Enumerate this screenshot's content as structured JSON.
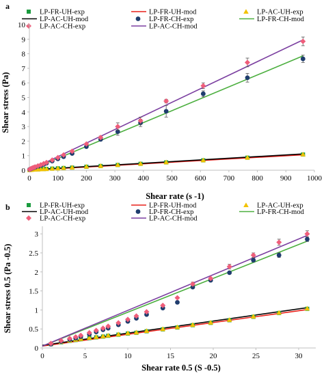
{
  "colors": {
    "FR_UH_exp": "#1a9b3e",
    "FR_UH_mod": "#e8201a",
    "AC_UH_exp": "#f2c200",
    "AC_UH_mod": "#000000",
    "FR_CH_exp": "#1f3d6e",
    "FR_CH_mod": "#4caf3f",
    "AC_CH_exp": "#ef5d7a",
    "AC_CH_mod": "#7b3fa0",
    "axis": "#bfbfbf"
  },
  "chart_data": [
    {
      "panel_label": "a",
      "type": "scatter",
      "xlabel": "Shear rate (s -1)",
      "ylabel": "Shear stress (Pa)",
      "xlim": [
        0,
        1000
      ],
      "ylim": [
        0,
        10
      ],
      "x_ticks": [
        "0",
        "100",
        "200",
        "300",
        "400",
        "500",
        "600",
        "700",
        "800",
        "900",
        "1000"
      ],
      "y_ticks": [
        "0",
        "1",
        "2",
        "3",
        "4",
        "5",
        "6",
        "7",
        "8",
        "9",
        "10"
      ],
      "grid": false,
      "legend_position": "top",
      "legend": [
        "LP-FR-UH-exp",
        "LP-FR-UH-mod",
        "LP-AC-UH-exp",
        "LP-AC-UH-mod",
        "LP-FR-CH-exp",
        "LP-FR-CH-mod",
        "LP-AC-CH-exp",
        "LP-AC-CH-mod"
      ],
      "series": [
        {
          "name": "LP-FR-UH-exp",
          "kind": "points",
          "marker": "square",
          "color_key": "FR_UH_exp",
          "x": [
            1,
            5,
            10,
            15,
            20,
            30,
            40,
            50,
            60,
            80,
            100,
            120,
            150,
            200,
            250,
            310,
            390,
            480,
            610,
            765,
            960
          ],
          "y": [
            0.02,
            0.03,
            0.04,
            0.05,
            0.05,
            0.06,
            0.07,
            0.08,
            0.09,
            0.11,
            0.13,
            0.15,
            0.18,
            0.24,
            0.29,
            0.36,
            0.44,
            0.54,
            0.68,
            0.86,
            1.08
          ]
        },
        {
          "name": "LP-FR-UH-mod",
          "kind": "line",
          "color_key": "FR_UH_mod",
          "x": [
            0,
            960
          ],
          "y": [
            0.0,
            1.06
          ]
        },
        {
          "name": "LP-AC-UH-exp",
          "kind": "points",
          "marker": "triangle",
          "color_key": "AC_UH_exp",
          "x": [
            1,
            5,
            10,
            15,
            20,
            30,
            40,
            50,
            60,
            80,
            100,
            120,
            150,
            200,
            250,
            310,
            390,
            480,
            610,
            765,
            960
          ],
          "y": [
            0.02,
            0.03,
            0.04,
            0.05,
            0.05,
            0.06,
            0.07,
            0.08,
            0.09,
            0.11,
            0.13,
            0.16,
            0.19,
            0.25,
            0.3,
            0.37,
            0.45,
            0.55,
            0.69,
            0.87,
            1.09
          ]
        },
        {
          "name": "LP-AC-UH-mod",
          "kind": "line",
          "color_key": "AC_UH_mod",
          "x": [
            0,
            960
          ],
          "y": [
            0.02,
            1.12
          ]
        },
        {
          "name": "LP-FR-CH-exp",
          "kind": "points",
          "marker": "circle",
          "color_key": "FR_CH_exp",
          "x": [
            1,
            5,
            10,
            15,
            20,
            30,
            40,
            50,
            60,
            80,
            100,
            120,
            150,
            200,
            250,
            310,
            390,
            480,
            610,
            765,
            960
          ],
          "y": [
            0.05,
            0.09,
            0.13,
            0.17,
            0.2,
            0.27,
            0.33,
            0.4,
            0.48,
            0.63,
            0.78,
            0.93,
            1.15,
            1.62,
            2.12,
            2.65,
            3.25,
            4.05,
            5.25,
            6.35,
            7.65
          ],
          "err": [
            0,
            0,
            0,
            0,
            0,
            0,
            0,
            0,
            0,
            0,
            0,
            0,
            0,
            0.08,
            0.1,
            0.25,
            0.25,
            0.4,
            0.2,
            0.3,
            0.25
          ]
        },
        {
          "name": "LP-FR-CH-mod",
          "kind": "line",
          "color_key": "FR_CH_mod",
          "x": [
            0,
            960
          ],
          "y": [
            0.0,
            7.85
          ]
        },
        {
          "name": "LP-AC-CH-exp",
          "kind": "points",
          "marker": "diamond",
          "color_key": "AC_CH_exp",
          "x": [
            1,
            5,
            10,
            15,
            20,
            30,
            40,
            50,
            60,
            80,
            100,
            120,
            150,
            200,
            250,
            310,
            390,
            480,
            610,
            765,
            960
          ],
          "y": [
            0.06,
            0.1,
            0.15,
            0.19,
            0.23,
            0.3,
            0.37,
            0.45,
            0.53,
            0.7,
            0.87,
            1.05,
            1.3,
            1.8,
            2.25,
            3.0,
            3.4,
            4.75,
            5.8,
            7.4,
            8.85
          ],
          "err": [
            0,
            0,
            0,
            0,
            0,
            0,
            0,
            0,
            0,
            0,
            0,
            0,
            0,
            0,
            0.1,
            0.25,
            0.25,
            0.12,
            0.2,
            0.3,
            0.3
          ]
        },
        {
          "name": "LP-AC-CH-mod",
          "kind": "line",
          "color_key": "AC_CH_mod",
          "x": [
            0,
            960
          ],
          "y": [
            0.0,
            8.95
          ]
        }
      ]
    },
    {
      "panel_label": "b",
      "type": "scatter",
      "xlabel": "Shear rate 0.5 (S -0.5)",
      "ylabel": "Shear stress 0.5 (Pa -0.5)",
      "xlim": [
        0,
        32
      ],
      "ylim": [
        0,
        3.2
      ],
      "x_ticks": [
        "0",
        "5",
        "10",
        "15",
        "20",
        "25",
        "30"
      ],
      "y_ticks": [
        "0",
        "0.5",
        "1",
        "1.5",
        "2",
        "2.5",
        "3"
      ],
      "grid": false,
      "legend_position": "top",
      "legend": [
        "LP-FR-UH-exp",
        "LP-FR-UH-mod",
        "LP-AC-UH-exp",
        "LP-AC-UH-mod",
        "LP-FR-CH-exp",
        "LP-FR-CH-mod",
        "LP-AC-CH-exp",
        "LP-AC-CH-mod"
      ],
      "series": [
        {
          "name": "LP-FR-UH-exp",
          "kind": "points",
          "marker": "square",
          "color_key": "FR_UH_exp",
          "x": [
            1,
            2.2,
            3.2,
            3.9,
            4.5,
            5.5,
            6.3,
            7.1,
            7.7,
            8.9,
            10,
            11,
            12.2,
            14.1,
            15.8,
            17.6,
            19.7,
            21.9,
            24.7,
            27.7,
            31
          ],
          "y": [
            0.1,
            0.15,
            0.19,
            0.21,
            0.23,
            0.26,
            0.28,
            0.3,
            0.32,
            0.35,
            0.38,
            0.4,
            0.44,
            0.49,
            0.54,
            0.6,
            0.66,
            0.73,
            0.82,
            0.92,
            1.03
          ]
        },
        {
          "name": "LP-FR-UH-mod",
          "kind": "line",
          "color_key": "FR_UH_mod",
          "x": [
            0,
            31
          ],
          "y": [
            0.05,
            1.01
          ]
        },
        {
          "name": "LP-AC-UH-exp",
          "kind": "points",
          "marker": "triangle",
          "color_key": "AC_UH_exp",
          "x": [
            1,
            2.2,
            3.2,
            3.9,
            4.5,
            5.5,
            6.3,
            7.1,
            7.7,
            8.9,
            10,
            11,
            12.2,
            14.1,
            15.8,
            17.6,
            19.7,
            21.9,
            24.7,
            27.7,
            31
          ],
          "y": [
            0.11,
            0.16,
            0.2,
            0.22,
            0.24,
            0.27,
            0.29,
            0.31,
            0.33,
            0.36,
            0.39,
            0.41,
            0.45,
            0.5,
            0.55,
            0.61,
            0.67,
            0.74,
            0.83,
            0.93,
            1.04
          ]
        },
        {
          "name": "LP-AC-UH-mod",
          "kind": "line",
          "color_key": "AC_UH_mod",
          "x": [
            0,
            31
          ],
          "y": [
            0.07,
            1.06
          ]
        },
        {
          "name": "LP-FR-CH-exp",
          "kind": "points",
          "marker": "circle",
          "color_key": "FR_CH_exp",
          "x": [
            1,
            2.2,
            3.2,
            3.9,
            4.5,
            5.5,
            6.3,
            7.1,
            7.7,
            8.9,
            10,
            11,
            12.2,
            14.1,
            15.8,
            17.6,
            19.7,
            21.9,
            24.7,
            27.7,
            31
          ],
          "y": [
            0.1,
            0.17,
            0.22,
            0.26,
            0.3,
            0.36,
            0.42,
            0.48,
            0.52,
            0.61,
            0.7,
            0.78,
            0.88,
            1.05,
            1.2,
            1.6,
            1.78,
            1.98,
            2.31,
            2.44,
            2.86
          ],
          "err": [
            0,
            0,
            0,
            0,
            0,
            0,
            0,
            0,
            0,
            0,
            0,
            0,
            0,
            0,
            0,
            0,
            0,
            0,
            0.05,
            0.06,
            0.06
          ]
        },
        {
          "name": "LP-FR-CH-mod",
          "kind": "line",
          "color_key": "FR_CH_mod",
          "x": [
            0,
            31
          ],
          "y": [
            0.05,
            2.81
          ]
        },
        {
          "name": "LP-AC-CH-exp",
          "kind": "points",
          "marker": "diamond",
          "color_key": "AC_CH_exp",
          "x": [
            1,
            2.2,
            3.2,
            3.9,
            4.5,
            5.5,
            6.3,
            7.1,
            7.7,
            8.9,
            10,
            11,
            12.2,
            14.1,
            15.8,
            17.6,
            19.7,
            21.9,
            24.7,
            27.7,
            31
          ],
          "y": [
            0.12,
            0.19,
            0.25,
            0.29,
            0.33,
            0.4,
            0.46,
            0.52,
            0.57,
            0.66,
            0.75,
            0.84,
            0.95,
            1.12,
            1.32,
            1.68,
            1.83,
            2.14,
            2.44,
            2.78,
            3.0
          ],
          "err": [
            0,
            0,
            0,
            0,
            0,
            0,
            0,
            0,
            0,
            0,
            0,
            0,
            0,
            0,
            0,
            0.05,
            0,
            0.06,
            0.06,
            0.08,
            0.08
          ]
        },
        {
          "name": "LP-AC-CH-mod",
          "kind": "line",
          "color_key": "AC_CH_mod",
          "x": [
            0,
            31
          ],
          "y": [
            0.05,
            2.96
          ]
        }
      ]
    }
  ]
}
